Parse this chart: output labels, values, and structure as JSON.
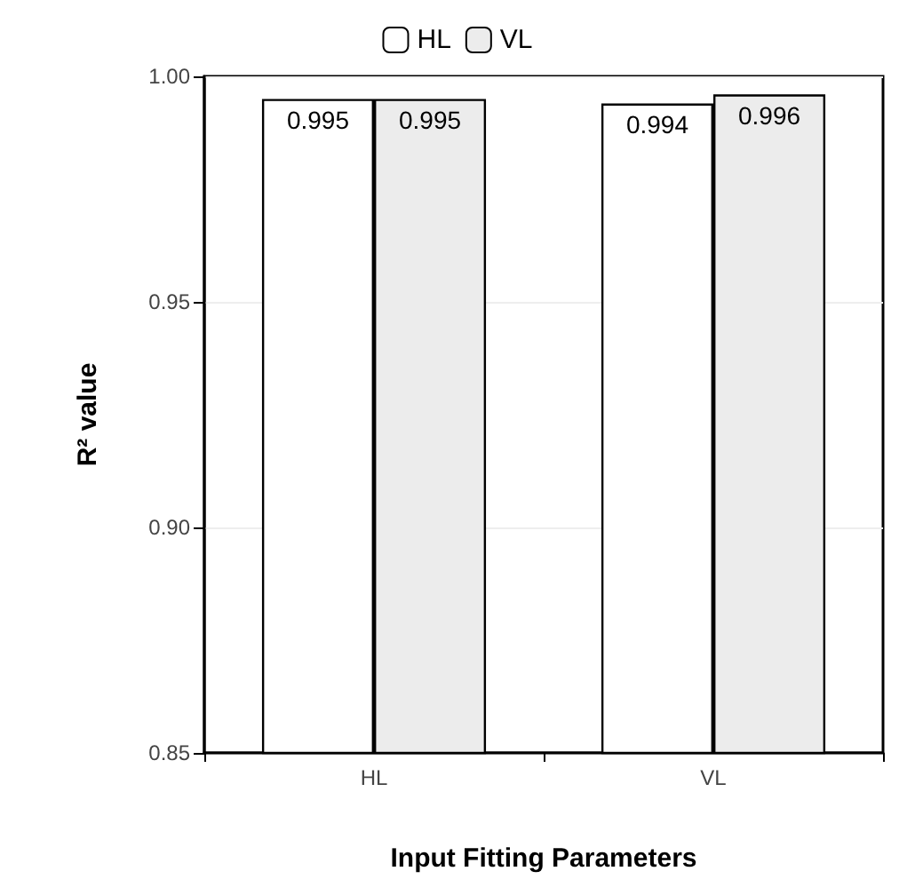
{
  "chart_data": {
    "type": "bar",
    "xlabel": "Input Fitting Parameters",
    "ylabel": "R² value",
    "categories": [
      "HL",
      "VL"
    ],
    "series": [
      {
        "name": "HL",
        "color": "#ffffff",
        "values": [
          0.995,
          0.994
        ]
      },
      {
        "name": "VL",
        "color": "#ececec",
        "values": [
          0.995,
          0.996
        ]
      }
    ],
    "ylim": [
      0.85,
      1.0
    ],
    "yticks": [
      0.85,
      {
        "value": 0.9,
        "label": "0.90"
      },
      0.95,
      {
        "value": 1.0,
        "label": "1.00"
      }
    ],
    "grid": "y",
    "legend": "top",
    "data_labels": true
  }
}
